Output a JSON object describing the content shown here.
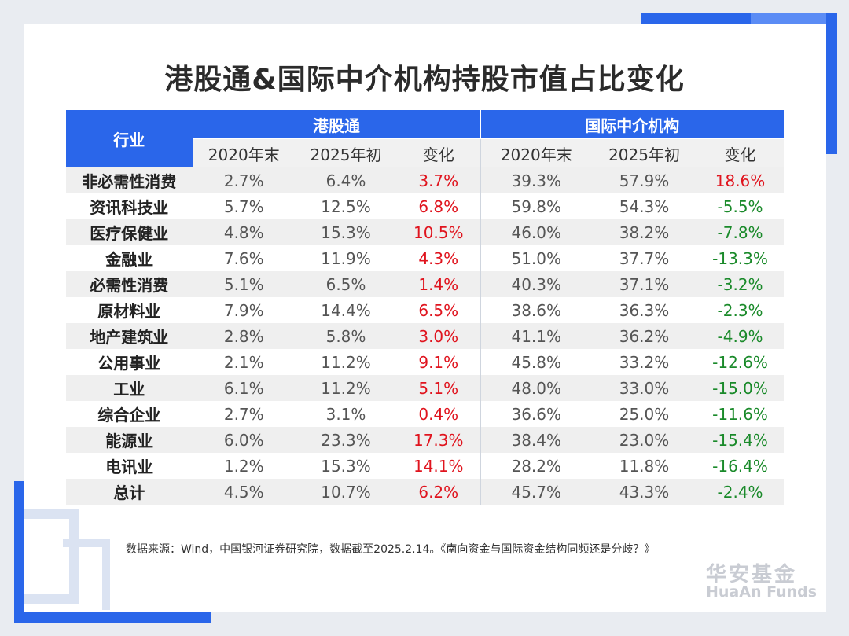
{
  "title": "港股通&国际中介机构持股市值占比变化",
  "table": {
    "industry_header": "行业",
    "group1": "港股通",
    "group2": "国际中介机构",
    "subheaders": [
      "2020年末",
      "2025年初",
      "变化",
      "2020年末",
      "2025年初",
      "变化"
    ],
    "rows": [
      {
        "industry": "非必需性消费",
        "hk2020": "2.7%",
        "hk2025": "6.4%",
        "hkchg": "3.7%",
        "in2020": "39.3%",
        "in2025": "57.9%",
        "inchg": "18.6%"
      },
      {
        "industry": "资讯科技业",
        "hk2020": "5.7%",
        "hk2025": "12.5%",
        "hkchg": "6.8%",
        "in2020": "59.8%",
        "in2025": "54.3%",
        "inchg": "-5.5%"
      },
      {
        "industry": "医疗保健业",
        "hk2020": "4.8%",
        "hk2025": "15.3%",
        "hkchg": "10.5%",
        "in2020": "46.0%",
        "in2025": "38.2%",
        "inchg": "-7.8%"
      },
      {
        "industry": "金融业",
        "hk2020": "7.6%",
        "hk2025": "11.9%",
        "hkchg": "4.3%",
        "in2020": "51.0%",
        "in2025": "37.7%",
        "inchg": "-13.3%"
      },
      {
        "industry": "必需性消费",
        "hk2020": "5.1%",
        "hk2025": "6.5%",
        "hkchg": "1.4%",
        "in2020": "40.3%",
        "in2025": "37.1%",
        "inchg": "-3.2%"
      },
      {
        "industry": "原材料业",
        "hk2020": "7.9%",
        "hk2025": "14.4%",
        "hkchg": "6.5%",
        "in2020": "38.6%",
        "in2025": "36.3%",
        "inchg": "-2.3%"
      },
      {
        "industry": "地产建筑业",
        "hk2020": "2.8%",
        "hk2025": "5.8%",
        "hkchg": "3.0%",
        "in2020": "41.1%",
        "in2025": "36.2%",
        "inchg": "-4.9%"
      },
      {
        "industry": "公用事业",
        "hk2020": "2.1%",
        "hk2025": "11.2%",
        "hkchg": "9.1%",
        "in2020": "45.8%",
        "in2025": "33.2%",
        "inchg": "-12.6%"
      },
      {
        "industry": "工业",
        "hk2020": "6.1%",
        "hk2025": "11.2%",
        "hkchg": "5.1%",
        "in2020": "48.0%",
        "in2025": "33.0%",
        "inchg": "-15.0%"
      },
      {
        "industry": "综合企业",
        "hk2020": "2.7%",
        "hk2025": "3.1%",
        "hkchg": "0.4%",
        "in2020": "36.6%",
        "in2025": "25.0%",
        "inchg": "-11.6%"
      },
      {
        "industry": "能源业",
        "hk2020": "6.0%",
        "hk2025": "23.3%",
        "hkchg": "17.3%",
        "in2020": "38.4%",
        "in2025": "23.0%",
        "inchg": "-15.4%"
      },
      {
        "industry": "电讯业",
        "hk2020": "1.2%",
        "hk2025": "15.3%",
        "hkchg": "14.1%",
        "in2020": "28.2%",
        "in2025": "11.8%",
        "inchg": "-16.4%"
      },
      {
        "industry": "总计",
        "hk2020": "4.5%",
        "hk2025": "10.7%",
        "hkchg": "6.2%",
        "in2020": "45.7%",
        "in2025": "43.3%",
        "inchg": "-2.4%"
      }
    ]
  },
  "source": "数据来源：Wind，中国银河证券研究院，数据截至2025.2.14。《南向资金与国际资金结构同频还是分歧？》",
  "brand": {
    "cn": "华安基金",
    "en": "HuaAn Funds"
  },
  "colors": {
    "accent": "#2a66ea",
    "positive": "#e0141e",
    "negative": "#1a8a2a"
  }
}
